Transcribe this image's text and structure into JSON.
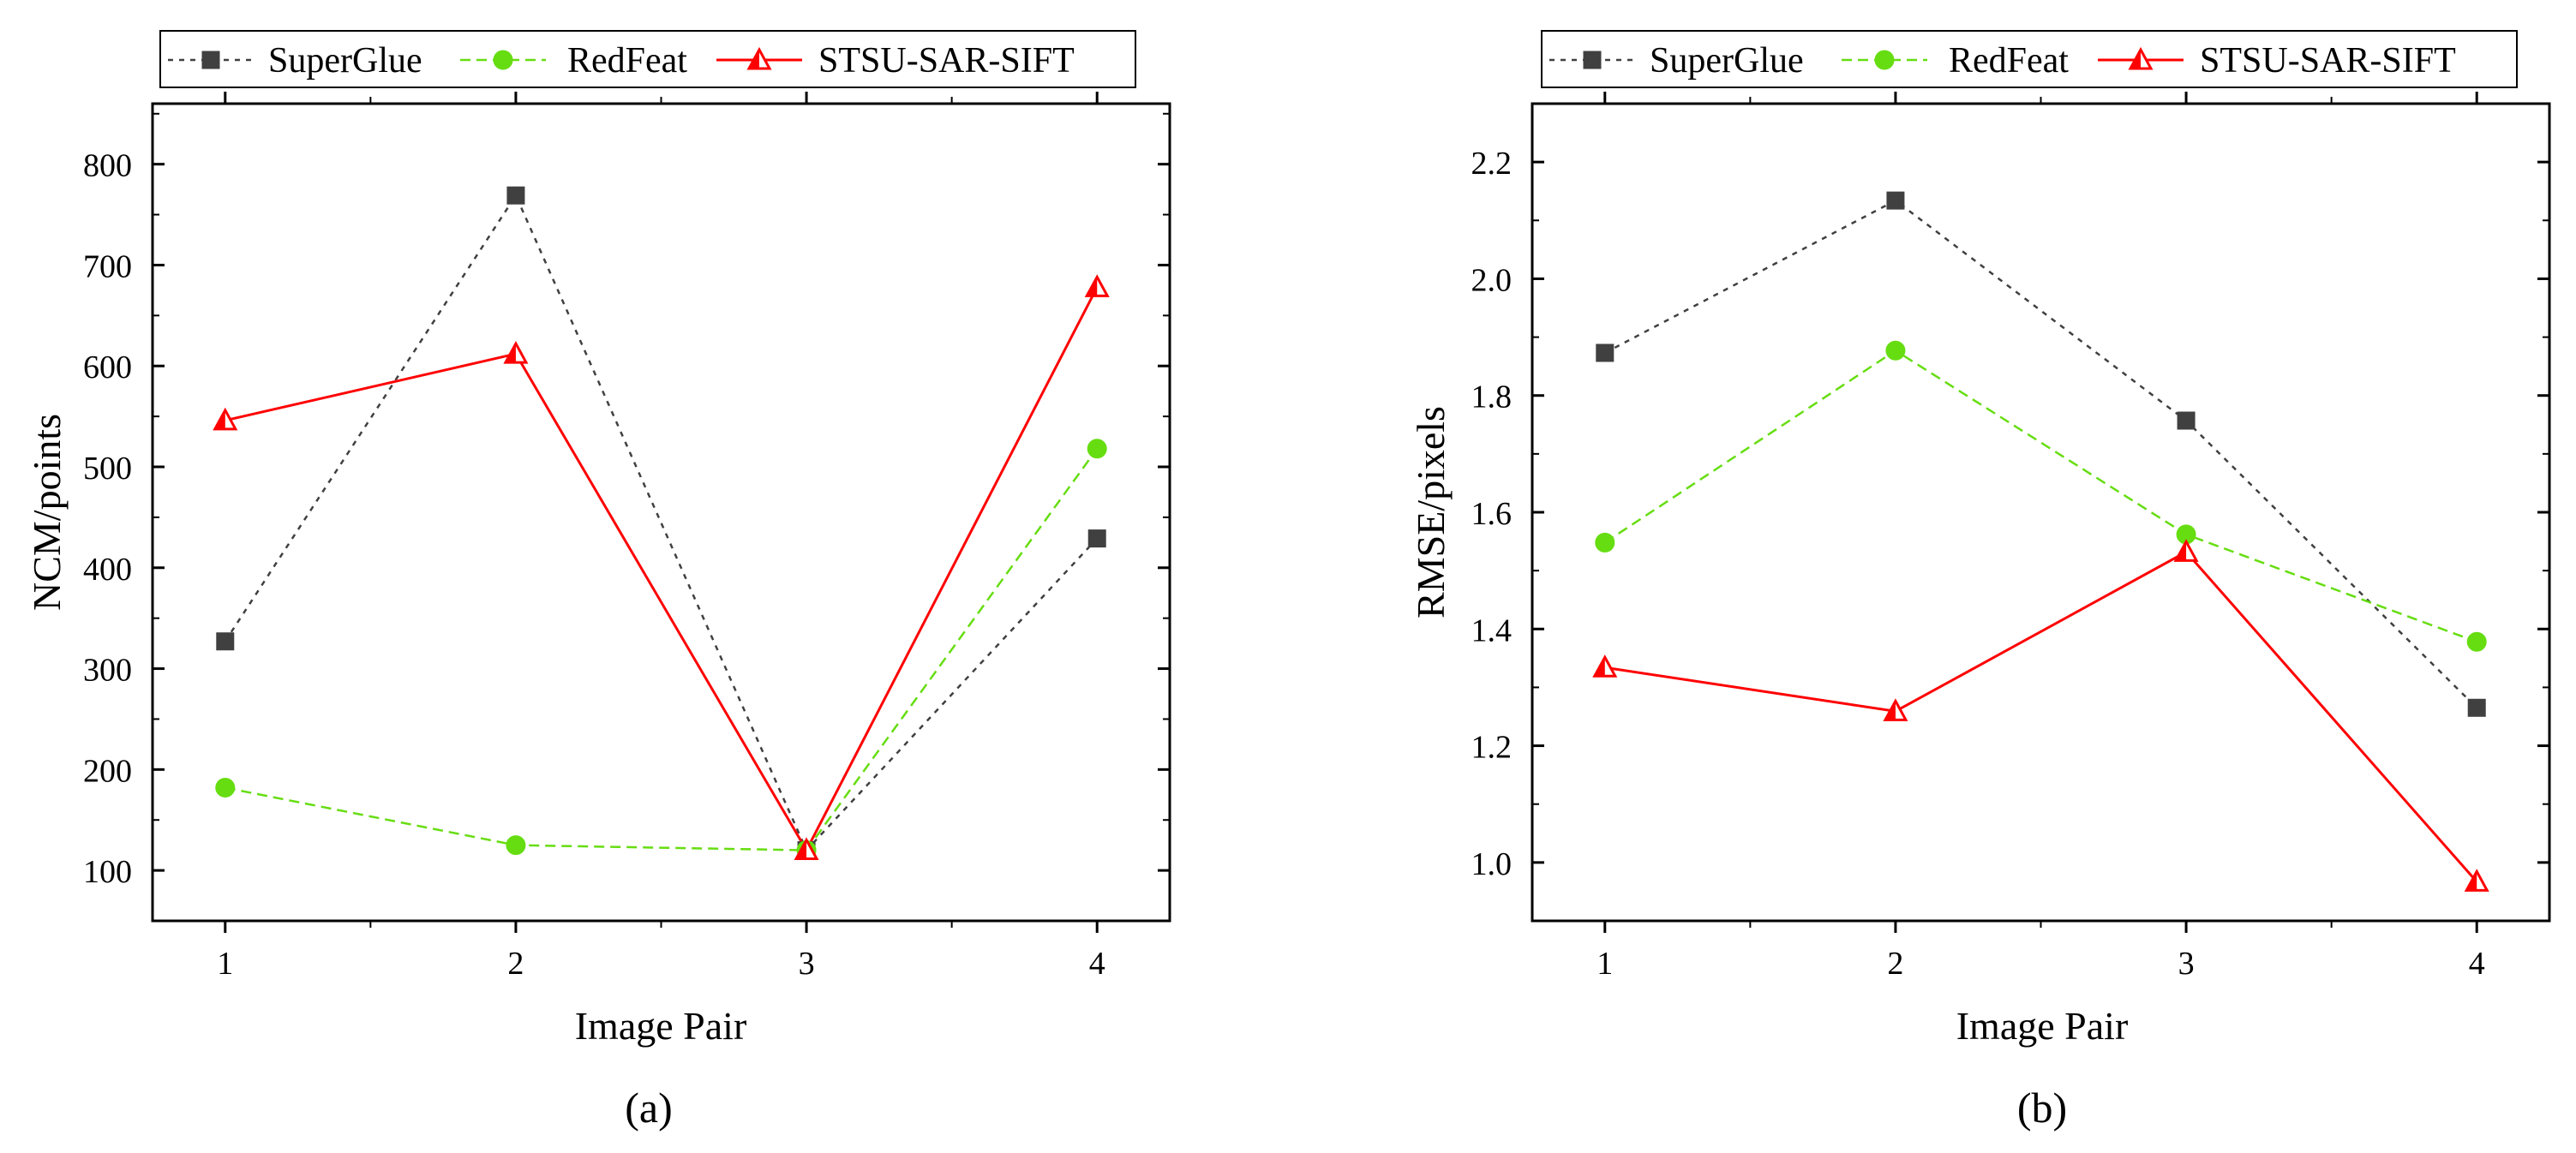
{
  "colors": {
    "superglue": "#404040",
    "redfeat": "#66dd11",
    "stsu": "#ff0000",
    "axis": "#000000"
  },
  "chart_data": [
    {
      "id": "a",
      "type": "line",
      "caption": "(a)",
      "title": "",
      "xlabel": "Image Pair",
      "ylabel": "NCM/points",
      "categories": [
        "1",
        "2",
        "3",
        "4"
      ],
      "x": [
        1,
        2,
        3,
        4
      ],
      "xlim": [
        0.75,
        4.25
      ],
      "ylim": [
        50,
        860
      ],
      "yticks": [
        100,
        200,
        300,
        400,
        500,
        600,
        700,
        800
      ],
      "ytick_labels": [
        "100",
        "200",
        "300",
        "400",
        "500",
        "600",
        "700",
        "800"
      ],
      "legend_position": "top, outside plot",
      "series": [
        {
          "name": "SuperGlue",
          "marker": "square",
          "line": "dotted",
          "values": [
            327,
            769,
            120,
            429
          ]
        },
        {
          "name": "RedFeat",
          "marker": "circle",
          "line": "dashed",
          "values": [
            182,
            125,
            120,
            518
          ]
        },
        {
          "name": "STSU-SAR-SIFT",
          "marker": "triangle-open",
          "line": "solid",
          "values": [
            546,
            612,
            120,
            678
          ]
        }
      ]
    },
    {
      "id": "b",
      "type": "line",
      "caption": "(b)",
      "title": "",
      "xlabel": "Image Pair",
      "ylabel": "RMSE/pixels",
      "categories": [
        "1",
        "2",
        "3",
        "4"
      ],
      "x": [
        1,
        2,
        3,
        4
      ],
      "xlim": [
        0.75,
        4.25
      ],
      "ylim": [
        0.9,
        2.3
      ],
      "yticks": [
        1.0,
        1.2,
        1.4,
        1.6,
        1.8,
        2.0,
        2.2
      ],
      "ytick_labels": [
        "1.0",
        "1.2",
        "1.4",
        "1.6",
        "1.8",
        "2.0",
        "2.2"
      ],
      "legend_position": "top, outside plot",
      "series": [
        {
          "name": "SuperGlue",
          "marker": "square",
          "line": "dotted",
          "values": [
            1.873,
            2.134,
            1.757,
            1.265
          ]
        },
        {
          "name": "RedFeat",
          "marker": "circle",
          "line": "dashed",
          "values": [
            1.548,
            1.877,
            1.562,
            1.378
          ]
        },
        {
          "name": "STSU-SAR-SIFT",
          "marker": "triangle-open",
          "line": "solid",
          "values": [
            1.334,
            1.259,
            1.532,
            0.967
          ]
        }
      ]
    }
  ]
}
